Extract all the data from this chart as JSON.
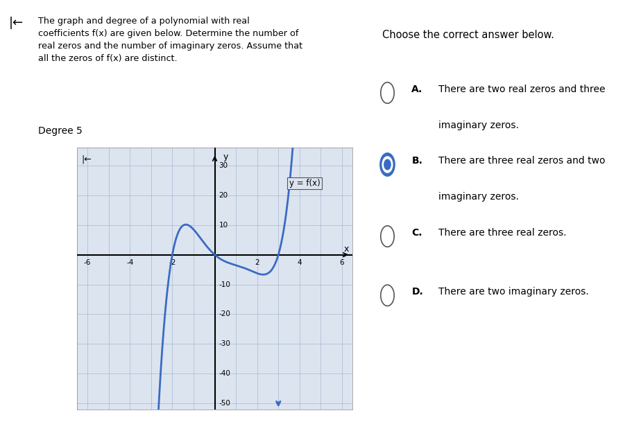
{
  "title_left": "The graph and degree of a polynomial with real\ncoefficients f(x) are given below. Determine the number of\nreal zeros and the number of imaginary zeros. Assume that\nall the zeros of f(x) are distinct.",
  "degree_label": "Degree 5",
  "title_right": "Choose the correct answer below.",
  "answers": [
    {
      "letter": "A.",
      "text": "There are two real zeros and three\nimaginary zeros.",
      "selected": false
    },
    {
      "letter": "B.",
      "text": "There are three real zeros and two\nimaginary zeros.",
      "selected": true
    },
    {
      "letter": "C.",
      "text": "There are three real zeros.",
      "selected": false
    },
    {
      "letter": "D.",
      "text": "There are two imaginary zeros.",
      "selected": false
    }
  ],
  "graph_xlim": [
    -6.5,
    6.5
  ],
  "graph_ylim": [
    -52,
    36
  ],
  "graph_xtick_vals": [
    -6,
    -4,
    -2,
    2,
    4,
    6
  ],
  "graph_ytick_vals": [
    -50,
    -40,
    -30,
    -20,
    -10,
    10,
    20,
    30
  ],
  "curve_color": "#3a6bc4",
  "label_text": "y = f(x)",
  "bg_white": "#ffffff",
  "bg_graph": "#dce4f0",
  "bg_right": "#f0eeea",
  "grid_color": "#a8b8d0",
  "axis_color": "#000000",
  "divider_color": "#c0c0c0"
}
